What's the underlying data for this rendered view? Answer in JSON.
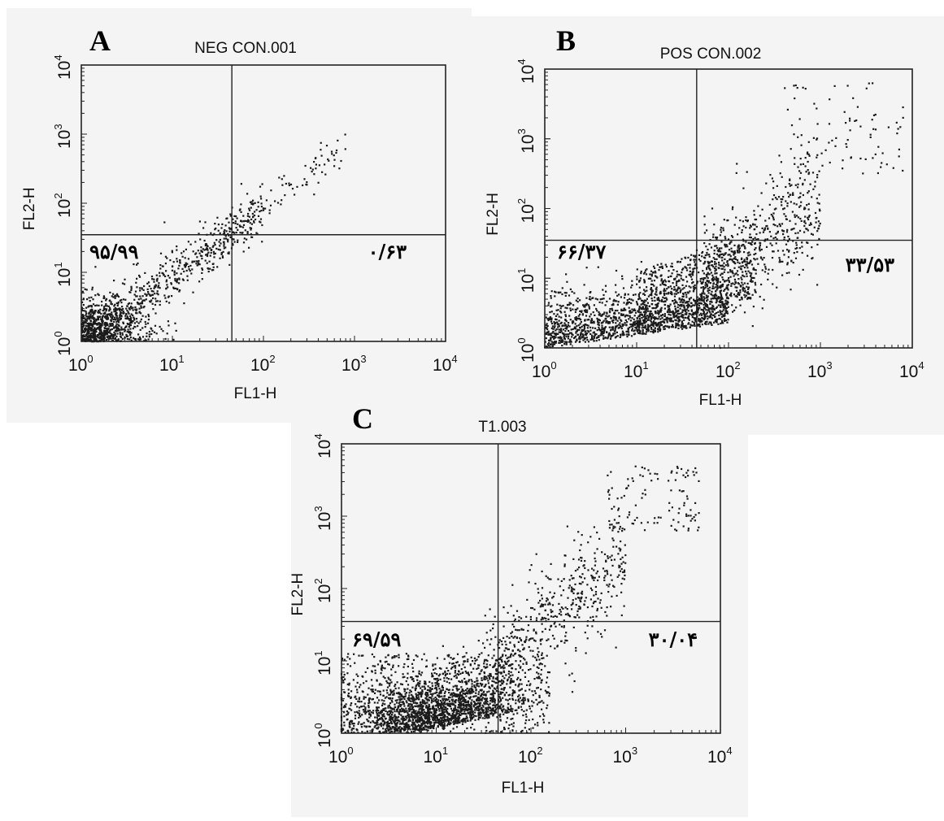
{
  "chart_data": [
    {
      "panel": "A",
      "type": "scatter",
      "title": "NEG CON.001",
      "xlabel": "FL1-H",
      "ylabel": "FL2-H",
      "xscale": "log",
      "yscale": "log",
      "xlim": [
        1,
        10000
      ],
      "ylim": [
        1,
        10000
      ],
      "x_ticks": [
        {
          "base": "10",
          "exp": "0"
        },
        {
          "base": "10",
          "exp": "1"
        },
        {
          "base": "10",
          "exp": "2"
        },
        {
          "base": "10",
          "exp": "3"
        },
        {
          "base": "10",
          "exp": "4"
        }
      ],
      "y_ticks": [
        {
          "base": "10",
          "exp": "0"
        },
        {
          "base": "10",
          "exp": "1"
        },
        {
          "base": "10",
          "exp": "2"
        },
        {
          "base": "10",
          "exp": "3"
        },
        {
          "base": "10",
          "exp": "4"
        }
      ],
      "quadrant_gate": {
        "x": 45,
        "y": 35
      },
      "quadrant_labels": {
        "lower_left": "۹۵/۹۹",
        "lower_right": "۰/۶۳"
      },
      "population": {
        "points": 1300,
        "pattern": "negative-diagonal"
      }
    },
    {
      "panel": "B",
      "type": "scatter",
      "title": "POS CON.002",
      "xlabel": "FL1-H",
      "ylabel": "FL2-H",
      "xscale": "log",
      "yscale": "log",
      "xlim": [
        1,
        10000
      ],
      "ylim": [
        1,
        10000
      ],
      "x_ticks": [
        {
          "base": "10",
          "exp": "0"
        },
        {
          "base": "10",
          "exp": "1"
        },
        {
          "base": "10",
          "exp": "2"
        },
        {
          "base": "10",
          "exp": "3"
        },
        {
          "base": "10",
          "exp": "4"
        }
      ],
      "y_ticks": [
        {
          "base": "10",
          "exp": "0"
        },
        {
          "base": "10",
          "exp": "1"
        },
        {
          "base": "10",
          "exp": "2"
        },
        {
          "base": "10",
          "exp": "3"
        },
        {
          "base": "10",
          "exp": "4"
        }
      ],
      "quadrant_gate": {
        "x": 45,
        "y": 35
      },
      "quadrant_labels": {
        "lower_left": "۶۶/۳۷",
        "lower_right": "۳۳/۵۳"
      },
      "population": {
        "points": 2600,
        "pattern": "positive-spread"
      }
    },
    {
      "panel": "C",
      "type": "scatter",
      "title": "T1.003",
      "xlabel": "FL1-H",
      "ylabel": "FL2-H",
      "xscale": "log",
      "yscale": "log",
      "xlim": [
        1,
        10000
      ],
      "ylim": [
        1,
        10000
      ],
      "x_ticks": [
        {
          "base": "10",
          "exp": "0"
        },
        {
          "base": "10",
          "exp": "1"
        },
        {
          "base": "10",
          "exp": "2"
        },
        {
          "base": "10",
          "exp": "3"
        },
        {
          "base": "10",
          "exp": "4"
        }
      ],
      "y_ticks": [
        {
          "base": "10",
          "exp": "0"
        },
        {
          "base": "10",
          "exp": "1"
        },
        {
          "base": "10",
          "exp": "2"
        },
        {
          "base": "10",
          "exp": "3"
        },
        {
          "base": "10",
          "exp": "4"
        }
      ],
      "quadrant_gate": {
        "x": 45,
        "y": 35
      },
      "quadrant_labels": {
        "lower_left": "۶۹/۵۹",
        "lower_right": "۳۰/۰۴"
      },
      "population": {
        "points": 3000,
        "pattern": "treated-spread"
      }
    }
  ],
  "colors": {
    "points": "#1a1a1a",
    "frame": "#222222",
    "text": "#111111",
    "scan_background": "#f4f4f4"
  }
}
